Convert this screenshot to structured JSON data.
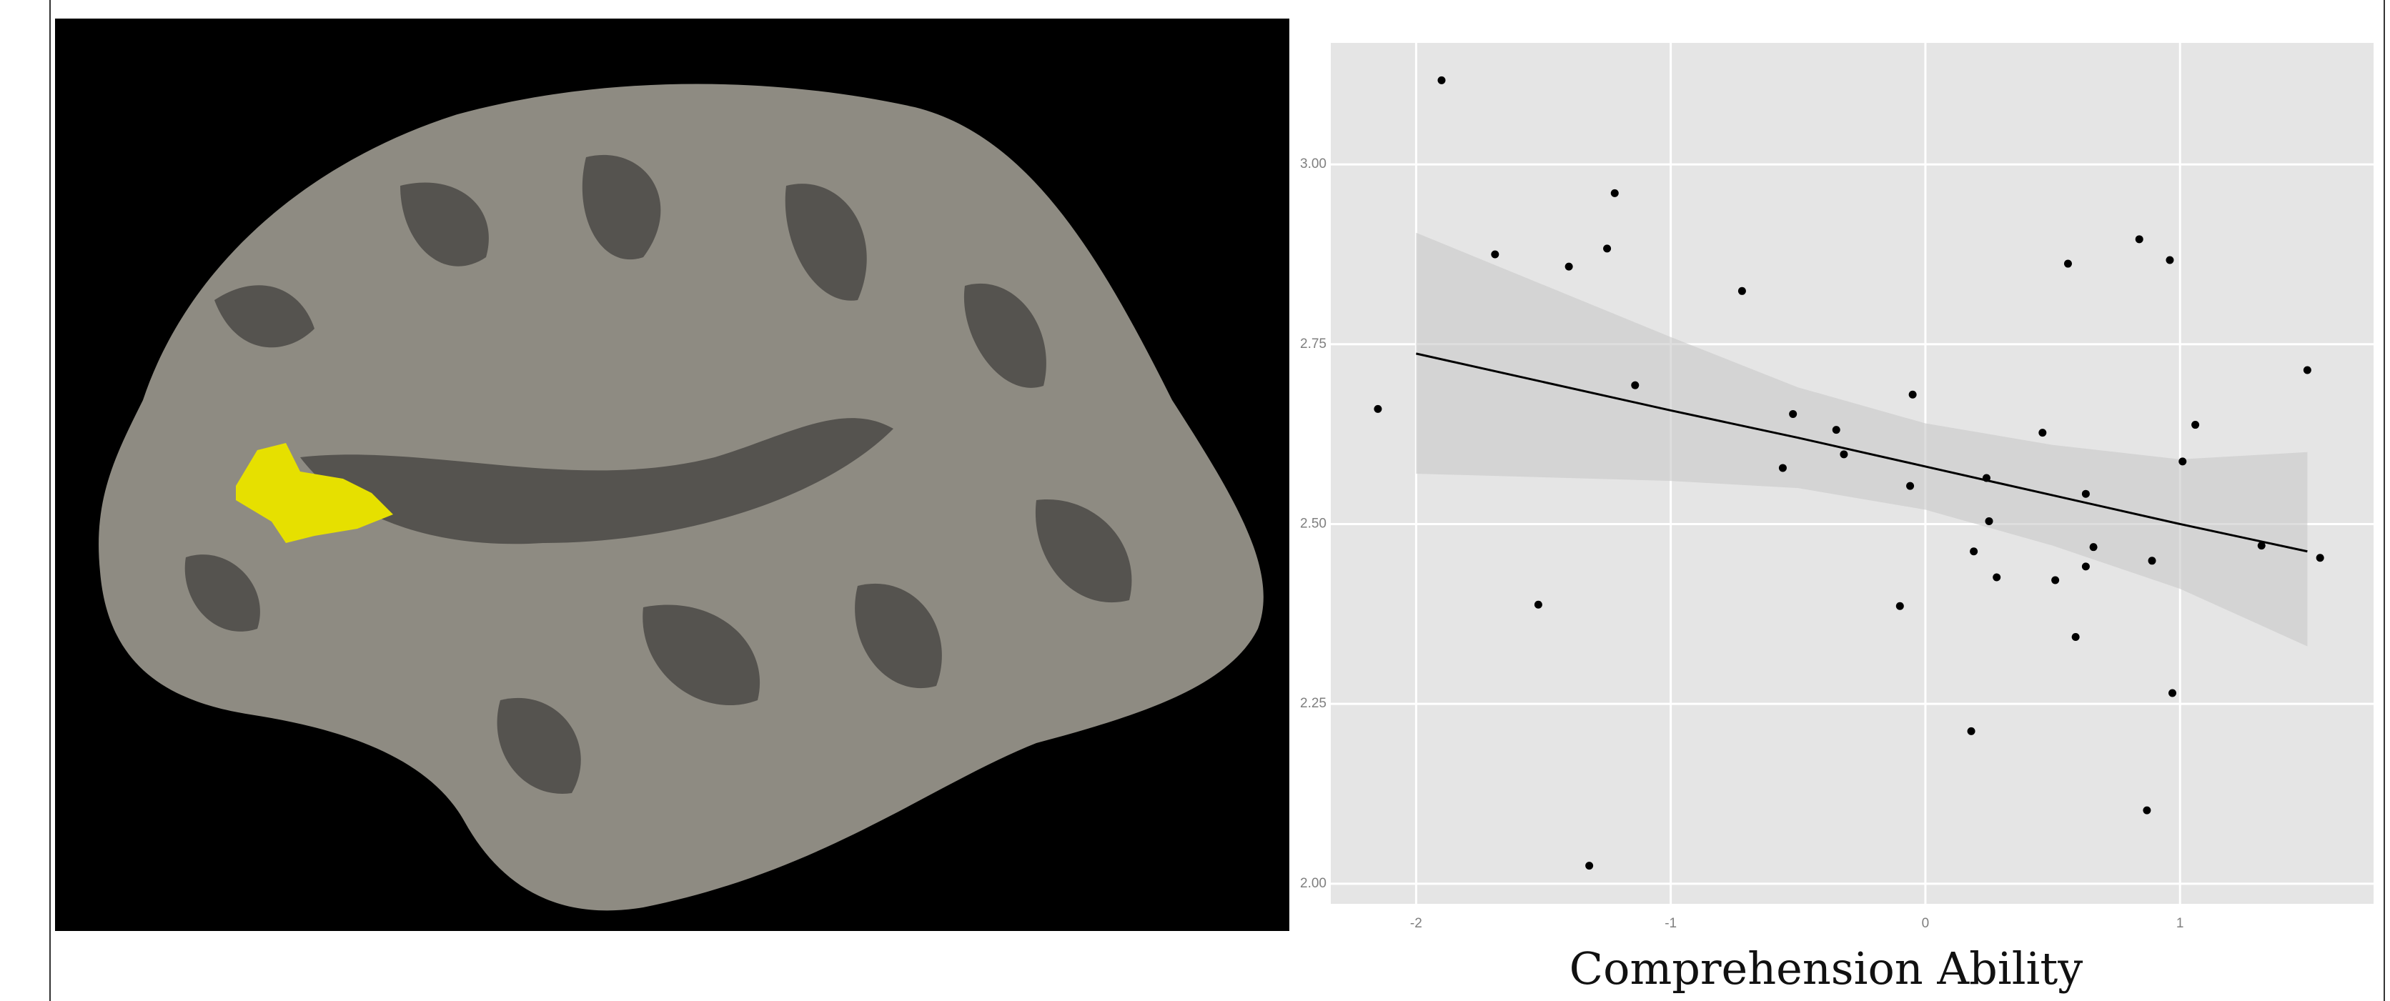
{
  "chart_data": {
    "type": "scatter",
    "x_label": "Comprehension Ability",
    "x": [
      -1.9,
      -1.69,
      -2.15,
      -1.4,
      -1.22,
      -1.25,
      -1.14,
      -0.72,
      -1.52,
      -1.32,
      -0.52,
      -0.56,
      -0.35,
      -0.32,
      -0.05,
      -0.06,
      -0.1,
      0.24,
      0.25,
      0.19,
      0.28,
      0.18,
      0.46,
      0.51,
      0.56,
      0.63,
      0.63,
      0.66,
      0.59,
      0.84,
      0.96,
      1.01,
      1.06,
      0.89,
      0.97,
      0.87,
      1.32,
      1.5,
      1.55
    ],
    "values": [
      3.117,
      2.875,
      2.66,
      2.858,
      2.96,
      2.883,
      2.693,
      2.824,
      2.388,
      2.025,
      2.653,
      2.578,
      2.631,
      2.597,
      2.68,
      2.553,
      2.386,
      2.564,
      2.504,
      2.462,
      2.426,
      2.212,
      2.627,
      2.422,
      2.862,
      2.542,
      2.441,
      2.468,
      2.343,
      2.896,
      2.867,
      2.587,
      2.638,
      2.449,
      2.265,
      2.102,
      2.47,
      2.714,
      2.453
    ],
    "color": "#000000",
    "fit": {
      "x": [
        -2,
        -1,
        -0.5,
        0,
        0.5,
        1,
        1.5
      ],
      "values": [
        2.737,
        2.658,
        2.62,
        2.58,
        2.54,
        2.5,
        2.462
      ],
      "upper": [
        2.905,
        2.76,
        2.69,
        2.64,
        2.61,
        2.59,
        2.6
      ],
      "lower": [
        2.57,
        2.56,
        2.55,
        2.52,
        2.47,
        2.41,
        2.33
      ],
      "color": "#000000",
      "band_color": "#c8c8c8"
    },
    "xlim": [
      -2.335,
      1.76
    ],
    "ylim": [
      1.972,
      3.169
    ],
    "xticks": [
      -2,
      -1,
      0,
      1
    ],
    "yticks": [
      {
        "value": 2,
        "label": "2.00"
      },
      {
        "value": 2.25,
        "label": "2.25"
      },
      {
        "value": 2.5,
        "label": "2.50"
      },
      {
        "value": 2.75,
        "label": "2.75"
      },
      {
        "value": 3,
        "label": "3.00"
      }
    ],
    "grid": true,
    "panel_color": "#e5e5e5"
  }
}
